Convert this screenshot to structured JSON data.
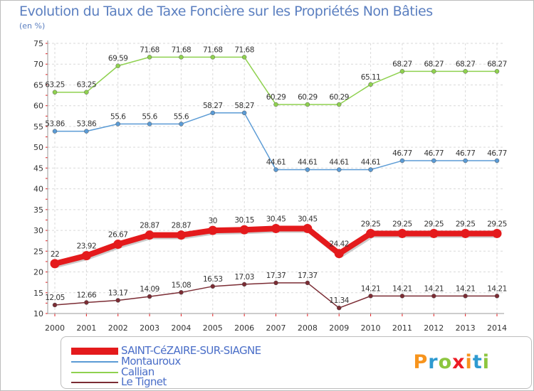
{
  "chart_data": {
    "type": "line",
    "title": "Evolution du Taux de Taxe Foncière sur les Propriétés Non Bâties",
    "unit": "(en %)",
    "xlabel": "",
    "ylabel": "",
    "ylim": [
      10,
      75
    ],
    "yticks": [
      10,
      15,
      20,
      25,
      30,
      35,
      40,
      45,
      50,
      55,
      60,
      65,
      70,
      75
    ],
    "grid": true,
    "legend_position": "bottom",
    "categories": [
      "2000",
      "2001",
      "2002",
      "2003",
      "2004",
      "2005",
      "2006",
      "2007",
      "2008",
      "2009",
      "2010",
      "2011",
      "2012",
      "2013",
      "2014"
    ],
    "series": [
      {
        "name": "SAINT-CéZAIRE-SUR-SIAGNE",
        "color": "#e41a1c",
        "values": [
          22,
          23.92,
          26.67,
          28.87,
          28.87,
          30,
          30.15,
          30.45,
          30.45,
          24.42,
          29.25,
          29.25,
          29.25,
          29.25,
          29.25
        ],
        "labels": [
          "22",
          "23.92",
          "26.67",
          "28.87",
          "28.87",
          "30",
          "30.15",
          "30.45",
          "30.45",
          "24.42",
          "29.25",
          "29.25",
          "29.25",
          "29.25",
          "29.25"
        ]
      },
      {
        "name": "Montauroux",
        "color": "#5b9bd5",
        "values": [
          53.86,
          53.86,
          55.6,
          55.6,
          55.6,
          58.27,
          58.27,
          44.61,
          44.61,
          44.61,
          44.61,
          46.77,
          46.77,
          46.77,
          46.77
        ],
        "labels": [
          "53.86",
          "53.86",
          "55.6",
          "55.6",
          "55.6",
          "58.27",
          "58.27",
          "44.61",
          "44.61",
          "44.61",
          "44.61",
          "46.77",
          "46.77",
          "46.77",
          "46.77"
        ]
      },
      {
        "name": "Callian",
        "color": "#8fd14f",
        "values": [
          63.25,
          63.25,
          69.59,
          71.68,
          71.68,
          71.68,
          71.68,
          60.29,
          60.29,
          60.29,
          65.11,
          68.27,
          68.27,
          68.27,
          68.27
        ],
        "labels": [
          "63.25",
          "63.25",
          "69.59",
          "71.68",
          "71.68",
          "71.68",
          "71.68",
          "60.29",
          "60.29",
          "60.29",
          "65.11",
          "68.27",
          "68.27",
          "68.27",
          "68.27"
        ]
      },
      {
        "name": "Le Tignet",
        "color": "#7b2c34",
        "values": [
          12.05,
          12.66,
          13.17,
          14.09,
          15.08,
          16.53,
          17.03,
          17.37,
          17.37,
          11.34,
          14.21,
          14.21,
          14.21,
          14.21,
          14.21
        ],
        "labels": [
          "12.05",
          "12.66",
          "13.17",
          "14.09",
          "15.08",
          "16.53",
          "17.03",
          "17.37",
          "17.37",
          "11.34",
          "14.21",
          "14.21",
          "14.21",
          "14.21",
          "14.21"
        ]
      }
    ]
  },
  "logo": {
    "letters": [
      "P",
      "r",
      "o",
      "x",
      "i",
      "t",
      "i"
    ],
    "colors": [
      "#f7941d",
      "#2e9ad0",
      "#8dc63f",
      "#ed1c24",
      "#f7941d",
      "#2e9ad0",
      "#8dc63f"
    ]
  }
}
